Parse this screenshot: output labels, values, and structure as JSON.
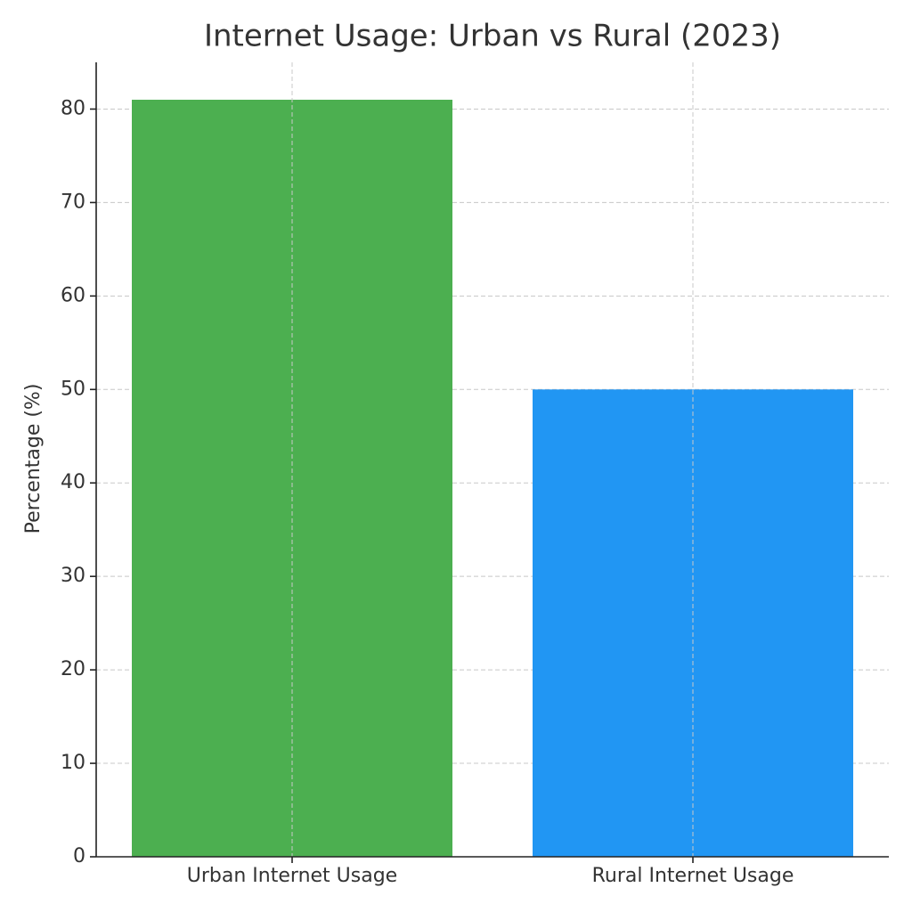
{
  "chart_data": {
    "type": "bar",
    "title": "Internet Usage: Urban vs Rural (2023)",
    "y_label": "Percentage (%)",
    "categories": [
      "Urban Internet Usage",
      "Rural Internet Usage"
    ],
    "values": [
      81,
      50
    ],
    "colors": [
      "#4caf50",
      "#2196f3"
    ],
    "ylim": [
      0,
      85
    ],
    "yticks": [
      0,
      10,
      20,
      30,
      40,
      50,
      60,
      70,
      80
    ],
    "grid": true
  }
}
